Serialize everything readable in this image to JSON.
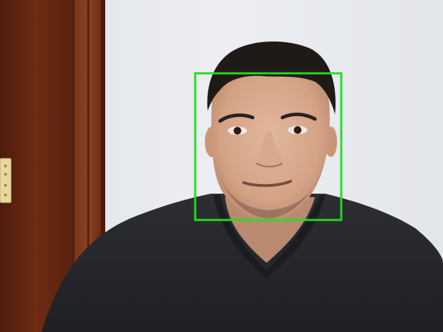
{
  "scene": {
    "wall_color": "#e8eaee",
    "door_color": "#6b2a12",
    "door_frame_color": "#7a3418",
    "hinge_color": "#e4d49a",
    "skin_color": "#d9ab8f",
    "hair_color": "#1f1a18",
    "sweater_color": "#26282d",
    "detection_box_color": "#22dd22"
  },
  "detection": {
    "label": "face"
  }
}
